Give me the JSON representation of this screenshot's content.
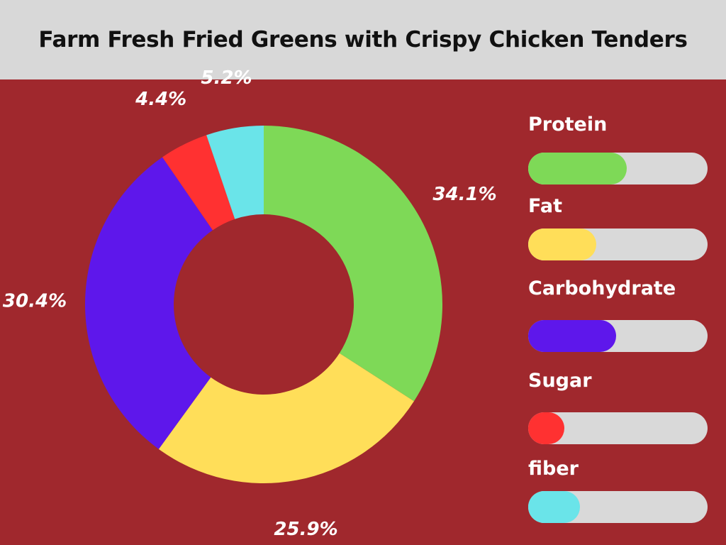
{
  "header": {
    "title": "Farm Fresh Fried Greens with Crispy Chicken Tenders"
  },
  "colors": {
    "background": "#a0282d",
    "header": "#d8d8d8",
    "track": "#d9d9d9"
  },
  "chart_data": {
    "type": "pie",
    "variant": "donut",
    "title": "Farm Fresh Fried Greens with Crispy Chicken Tenders",
    "categories": [
      "Protein",
      "Fat",
      "Carbohydrate",
      "Sugar",
      "fiber"
    ],
    "values": [
      34.1,
      25.9,
      30.4,
      4.4,
      5.2
    ],
    "value_labels": [
      "34.1%",
      "25.9%",
      "30.4%",
      "4.4%",
      "5.2%"
    ],
    "colors": [
      "#7ed957",
      "#ffde59",
      "#5e17eb",
      "#ff3131",
      "#6ae4e9"
    ],
    "legend_placement": "right",
    "legend_bar_fraction": [
      0.55,
      0.38,
      0.49,
      0.2,
      0.29
    ]
  }
}
